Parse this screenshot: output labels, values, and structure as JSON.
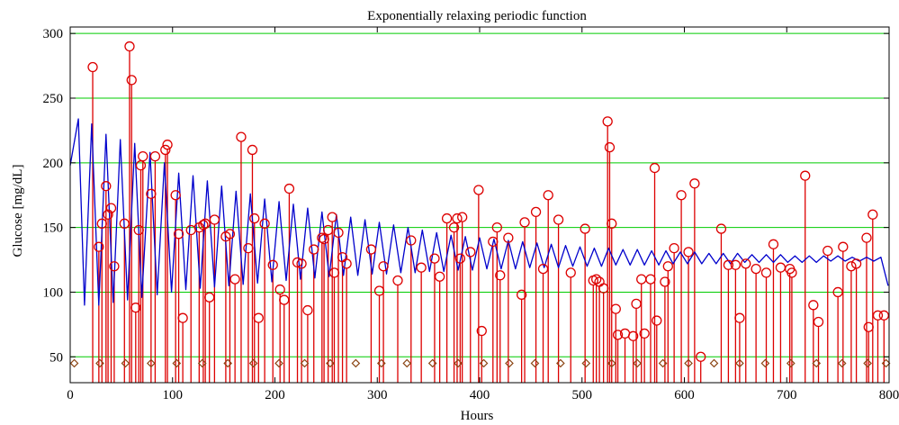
{
  "chart_data": {
    "type": "line",
    "title": "Exponentially relaxing periodic function",
    "xlabel": "Hours",
    "ylabel": "Glucose [mg/dL]",
    "xlim": [
      0,
      800
    ],
    "ylim": [
      30,
      305
    ],
    "xticks": [
      0,
      100,
      200,
      300,
      400,
      500,
      600,
      700,
      800
    ],
    "yticks": [
      50,
      100,
      150,
      200,
      250,
      300
    ],
    "grid": "horizontal",
    "colors": {
      "curve": "#0000cc",
      "measurement": "#dd0000",
      "marker": "#8b4513",
      "grid": "#00cc00",
      "axis": "#000000"
    },
    "curve": {
      "x": [
        0,
        8,
        14,
        21,
        28,
        35,
        42,
        49,
        56,
        63,
        70,
        78,
        85,
        92,
        99,
        106,
        113,
        120,
        127,
        134,
        141,
        148,
        155,
        162,
        169,
        176,
        183,
        190,
        197,
        204,
        211,
        218,
        225,
        232,
        239,
        246,
        253,
        260,
        267,
        274,
        281,
        288,
        295,
        302,
        309,
        316,
        323,
        330,
        337,
        344,
        351,
        358,
        365,
        372,
        379,
        386,
        393,
        400,
        407,
        414,
        421,
        428,
        435,
        442,
        449,
        456,
        463,
        470,
        477,
        484,
        491,
        498,
        505,
        512,
        519,
        526,
        533,
        540,
        547,
        554,
        561,
        568,
        575,
        582,
        589,
        596,
        603,
        610,
        617,
        624,
        631,
        638,
        645,
        652,
        659,
        666,
        673,
        680,
        687,
        694,
        701,
        708,
        715,
        722,
        729,
        736,
        743,
        750,
        757,
        764,
        771,
        778,
        785,
        792,
        799
      ],
      "y": [
        198,
        234,
        90,
        230,
        90,
        222,
        92,
        218,
        94,
        215,
        96,
        208,
        98,
        200,
        100,
        192,
        102,
        190,
        103,
        186,
        104,
        182,
        105,
        178,
        106,
        176,
        107,
        172,
        108,
        170,
        109,
        168,
        110,
        165,
        111,
        162,
        112,
        160,
        113,
        158,
        113,
        156,
        114,
        154,
        114,
        152,
        115,
        150,
        115,
        148,
        116,
        146,
        116,
        144,
        117,
        143,
        117,
        142,
        118,
        141,
        118,
        140,
        118,
        139,
        119,
        138,
        119,
        137,
        119,
        136,
        120,
        135,
        120,
        134,
        120,
        134,
        121,
        133,
        121,
        133,
        121,
        132,
        121,
        132,
        122,
        131,
        122,
        131,
        122,
        130,
        122,
        130,
        122,
        130,
        123,
        129,
        123,
        129,
        123,
        129,
        123,
        128,
        123,
        128,
        123,
        128,
        124,
        128,
        124,
        127,
        124,
        127,
        124,
        127,
        105
      ]
    },
    "measurements": {
      "x": [
        22,
        28,
        31,
        35,
        37,
        40,
        43,
        53,
        58,
        60,
        64,
        67,
        69,
        71,
        79,
        83,
        93,
        95,
        103,
        106,
        110,
        118,
        126,
        130,
        132,
        136,
        141,
        152,
        156,
        161,
        167,
        174,
        178,
        180,
        184,
        190,
        198,
        205,
        209,
        214,
        222,
        226,
        232,
        238,
        246,
        248,
        252,
        256,
        258,
        262,
        266,
        270,
        294,
        302,
        306,
        320,
        333,
        343,
        356,
        361,
        368,
        375,
        378,
        381,
        383,
        391,
        399,
        402,
        413,
        417,
        420,
        428,
        441,
        444,
        455,
        462,
        467,
        477,
        489,
        503,
        511,
        514,
        517,
        521,
        525,
        527,
        529,
        533,
        535,
        542,
        550,
        553,
        558,
        561,
        567,
        571,
        573,
        581,
        584,
        590,
        597,
        604,
        610,
        616,
        636,
        643,
        650,
        654,
        660,
        670,
        680,
        687,
        694,
        703,
        705,
        718,
        726,
        731,
        740,
        750,
        755,
        763,
        768,
        778,
        780,
        784,
        789,
        795
      ],
      "y": [
        274,
        135,
        153,
        182,
        160,
        165,
        120,
        153,
        290,
        264,
        88,
        148,
        198,
        205,
        176,
        205,
        210,
        214,
        175,
        145,
        80,
        148,
        150,
        152,
        153,
        96,
        156,
        143,
        145,
        110,
        220,
        134,
        210,
        157,
        80,
        153,
        121,
        102,
        94,
        180,
        123,
        122,
        86,
        133,
        142,
        141,
        148,
        158,
        115,
        146,
        127,
        122,
        133,
        101,
        120,
        109,
        140,
        119,
        126,
        112,
        157,
        150,
        157,
        126,
        158,
        131,
        179,
        70,
        139,
        150,
        113,
        142,
        98,
        154,
        162,
        118,
        175,
        156,
        115,
        149,
        109,
        110,
        108,
        103,
        232,
        212,
        153,
        87,
        67,
        68,
        66,
        91,
        110,
        68,
        110,
        196,
        78,
        108,
        120,
        134,
        175,
        131,
        184,
        50,
        149,
        121,
        121,
        80,
        122,
        118,
        115,
        137,
        119,
        118,
        115,
        190,
        90,
        77,
        132,
        100,
        135,
        120,
        122,
        142,
        73,
        160,
        82,
        82
      ],
      "baseline": 30
    },
    "diamonds": {
      "x": [
        4,
        29,
        54,
        79,
        104,
        129,
        154,
        179,
        204,
        229,
        254,
        279,
        304,
        329,
        354,
        379,
        404,
        429,
        454,
        479,
        504,
        529,
        554,
        579,
        604,
        629,
        654,
        679,
        704,
        729,
        754,
        779,
        797
      ],
      "y": 45
    }
  }
}
